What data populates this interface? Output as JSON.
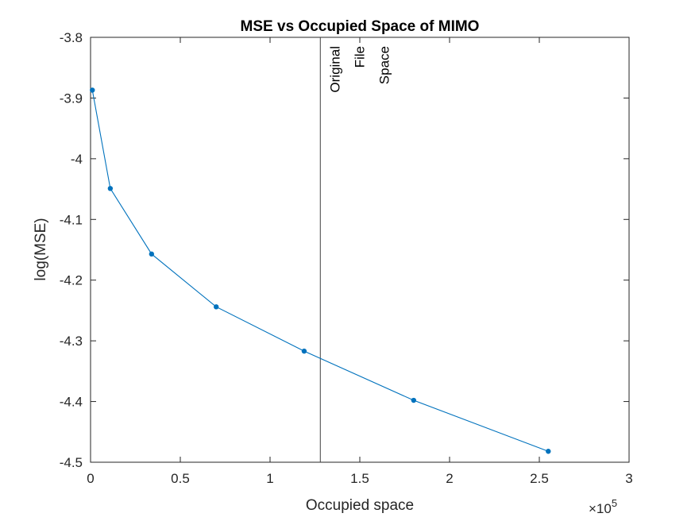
{
  "chart_data": {
    "type": "line",
    "title": "MSE vs Occupied Space of MIMO",
    "xlabel": "Occupied space",
    "ylabel": "log(MSE)",
    "x_multiplier_label": "×10",
    "x_multiplier_exponent": "5",
    "xlim": [
      0,
      3
    ],
    "ylim": [
      -4.5,
      -3.8
    ],
    "xticks": [
      0,
      0.5,
      1,
      1.5,
      2,
      2.5,
      3
    ],
    "xtick_labels": [
      "0",
      "0.5",
      "1",
      "1.5",
      "2",
      "2.5",
      "3"
    ],
    "yticks": [
      -3.8,
      -3.9,
      -4.0,
      -4.1,
      -4.2,
      -4.3,
      -4.4,
      -4.5
    ],
    "ytick_labels": [
      "-3.8",
      "-3.9",
      "-4",
      "-4.1",
      "-4.2",
      "-4.3",
      "-4.4",
      "-4.5"
    ],
    "grid": false,
    "series": [
      {
        "x": [
          0.01,
          0.11,
          0.34,
          0.7,
          1.19,
          1.8,
          2.55
        ],
        "y": [
          -3.887,
          -4.049,
          -4.157,
          -4.244,
          -4.317,
          -4.398,
          -4.482
        ],
        "color": "#0072BD",
        "marker": "dot"
      }
    ],
    "reference_line": {
      "x": 1.28,
      "label_lines": [
        "Original",
        "File",
        "Space"
      ],
      "color": "#404040"
    }
  }
}
